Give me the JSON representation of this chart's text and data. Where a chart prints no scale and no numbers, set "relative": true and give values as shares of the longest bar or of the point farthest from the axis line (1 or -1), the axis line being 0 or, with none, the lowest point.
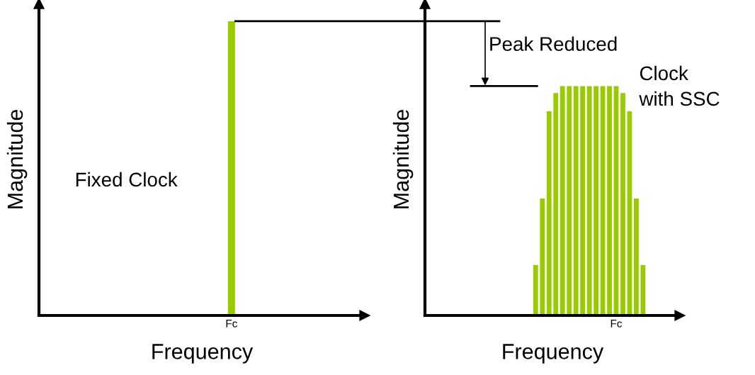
{
  "chart_data": [
    {
      "type": "bar",
      "relative": true,
      "xlabel": "Frequency",
      "ylabel": "Magnitude",
      "tick_labels": "x",
      "grid": false,
      "legend": false,
      "color": "#99cc00",
      "categories": [
        "Fc"
      ],
      "values": [
        1
      ],
      "annotations": [
        "Fixed Clock"
      ]
    },
    {
      "type": "bar",
      "relative": true,
      "xlabel": "Frequency",
      "ylabel": "Magnitude",
      "tick_labels": "x",
      "grid": false,
      "legend": false,
      "color": "#99cc00",
      "categories": [
        null,
        null,
        null,
        null,
        null,
        null,
        null,
        null,
        null,
        null,
        null,
        null,
        "Fc",
        null,
        null,
        null,
        null
      ],
      "values": [
        0.22,
        0.51,
        0.89,
        0.97,
        1,
        1,
        1,
        1,
        1,
        1,
        1,
        1,
        1,
        0.97,
        0.89,
        0.51,
        0.22
      ],
      "annotations": [
        "Peak Reduced",
        "Clock\nwith SSC"
      ]
    }
  ]
}
